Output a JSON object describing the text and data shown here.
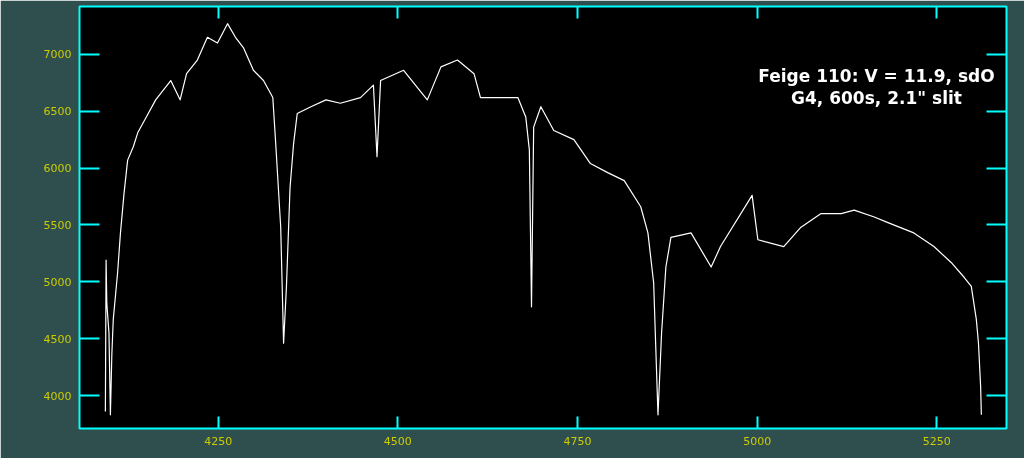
{
  "chart_data": {
    "type": "line",
    "color": "#ffffff",
    "grid": false,
    "x": [
      4093,
      4094,
      4095,
      4098,
      4100,
      4102,
      4104,
      4110,
      4114,
      4119,
      4124,
      4132,
      4138,
      4150,
      4163,
      4184,
      4197,
      4206,
      4221,
      4235,
      4249,
      4263,
      4274,
      4285,
      4299,
      4313,
      4326,
      4330,
      4337,
      4341,
      4345,
      4350,
      4355,
      4360,
      4379,
      4400,
      4420,
      4448,
      4466,
      4471,
      4476,
      4508,
      4541,
      4560,
      4583,
      4606,
      4615,
      4639,
      4667,
      4678,
      4683,
      4686,
      4689,
      4699,
      4717,
      4745,
      4768,
      4792,
      4815,
      4838,
      4848,
      4856,
      4862,
      4867,
      4873,
      4880,
      4908,
      4936,
      4949,
      4993,
      5001,
      5037,
      5061,
      5089,
      5117,
      5135,
      5163,
      5182,
      5218,
      5246,
      5270,
      5288,
      5298,
      5305,
      5308,
      5311,
      5312
    ],
    "values": [
      3860,
      5190,
      4810,
      4550,
      3830,
      4360,
      4670,
      5080,
      5430,
      5780,
      6070,
      6190,
      6310,
      6450,
      6600,
      6770,
      6600,
      6830,
      6950,
      7150,
      7100,
      7270,
      7150,
      7060,
      6860,
      6770,
      6620,
      6220,
      5480,
      4460,
      4960,
      5830,
      6220,
      6480,
      6540,
      6600,
      6570,
      6620,
      6730,
      6100,
      6770,
      6860,
      6600,
      6890,
      6950,
      6830,
      6620,
      6620,
      6620,
      6450,
      6160,
      4780,
      6360,
      6540,
      6330,
      6250,
      6040,
      5960,
      5890,
      5660,
      5430,
      4990,
      3830,
      4550,
      5130,
      5390,
      5430,
      5130,
      5310,
      5760,
      5370,
      5310,
      5480,
      5600,
      5600,
      5630,
      5570,
      5520,
      5430,
      5310,
      5170,
      5040,
      4960,
      4670,
      4460,
      4080,
      3830
    ],
    "xlim": [
      4057,
      5347
    ],
    "ylim": [
      3710,
      7421
    ],
    "xticks": [
      4250,
      4500,
      4750,
      5000,
      5250
    ],
    "yticks": [
      4000,
      4500,
      5000,
      5500,
      6000,
      6500,
      7000
    ],
    "annotations": [
      "Feige 110: V = 11.9, sdO",
      "G4, 600s, 2.1\" slit"
    ]
  }
}
